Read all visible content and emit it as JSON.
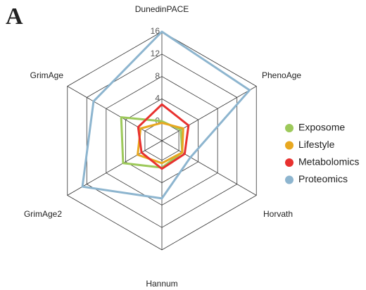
{
  "chart_data": {
    "type": "radar",
    "panel_label": "A",
    "categories": [
      "DunedinPACE",
      "PhenoAge",
      "Horvath",
      "Hannum",
      "GrimAge2",
      "GrimAge"
    ],
    "series": [
      {
        "name": "Exposome",
        "color": "#9dc95a",
        "values": [
          0,
          0.4,
          0.7,
          1.3,
          4.5,
          4.9
        ]
      },
      {
        "name": "Lifestyle",
        "color": "#e8a820",
        "values": [
          -0.3,
          0.9,
          0.7,
          0.5,
          1.5,
          0.9
        ]
      },
      {
        "name": "Metabolomics",
        "color": "#e8312f",
        "values": [
          3.0,
          2.0,
          1.2,
          1.5,
          0.7,
          1.4
        ]
      },
      {
        "name": "Proteomics",
        "color": "#8db5cf",
        "values": [
          16,
          14.6,
          2.4,
          6.8,
          12.9,
          10.6
        ]
      }
    ],
    "ylim": [
      -3.5,
      16
    ],
    "yticks": [
      0,
      4,
      8,
      12,
      16
    ],
    "legend": "right"
  }
}
